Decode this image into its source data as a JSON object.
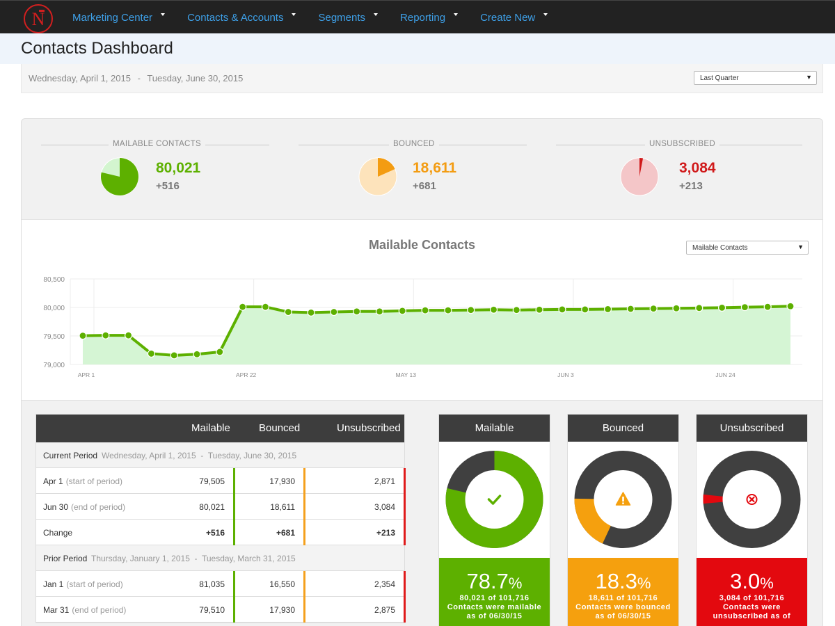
{
  "nav": {
    "logo_letter": "N",
    "menu": [
      "Marketing Center",
      "Contacts & Accounts",
      "Segments",
      "Reporting",
      "Create New"
    ]
  },
  "page": {
    "title": "Contacts Dashboard",
    "date_start": "Wednesday, April 1, 2015",
    "date_separator": "-",
    "date_end": "Tuesday, June 30, 2015",
    "period_select": "Last Quarter"
  },
  "summary": [
    {
      "label": "MAILABLE CONTACTS",
      "value": "80,021",
      "delta": "+516",
      "color": "#5db000",
      "light": "#d3f5cf",
      "fraction": 0.787
    },
    {
      "label": "BOUNCED",
      "value": "18,611",
      "delta": "+681",
      "color": "#f39c12",
      "light": "#fde3bb",
      "fraction": 0.183
    },
    {
      "label": "UNSUBSCRIBED",
      "value": "3,084",
      "delta": "+213",
      "color": "#d0191a",
      "light": "#f4c6c8",
      "fraction": 0.03
    }
  ],
  "chart_data": {
    "type": "area",
    "title": "Mailable Contacts",
    "metric_select": "Mailable Contacts",
    "xlabel": "",
    "ylabel": "",
    "ylim": [
      79000,
      80500
    ],
    "yticks": [
      "80,500",
      "80,000",
      "79,500",
      "79,000"
    ],
    "xticks": [
      "APR 1",
      "APR 22",
      "MAY 13",
      "JUN 3",
      "JUN 24"
    ],
    "values": [
      79505,
      79510,
      79510,
      79190,
      79160,
      79180,
      79220,
      80010,
      80010,
      79920,
      79910,
      79920,
      79930,
      79930,
      79940,
      79950,
      79950,
      79955,
      79960,
      79955,
      79960,
      79965,
      79965,
      79970,
      79975,
      79980,
      79985,
      79990,
      79995,
      80005,
      80010,
      80021
    ]
  },
  "table": {
    "headers": [
      "Mailable",
      "Bounced",
      "Unsubscribed"
    ],
    "current": {
      "label": "Current Period",
      "range": "Wednesday, April 1, 2015  -  Tuesday, June 30, 2015",
      "rows": [
        {
          "label": "Apr 1",
          "sub": "(start of period)",
          "mailable": "79,505",
          "bounced": "17,930",
          "unsub": "2,871"
        },
        {
          "label": "Jun 30",
          "sub": "(end of period)",
          "mailable": "80,021",
          "bounced": "18,611",
          "unsub": "3,084"
        },
        {
          "label": "Change",
          "sub": "",
          "mailable": "+516",
          "bounced": "+681",
          "unsub": "+213"
        }
      ]
    },
    "prior": {
      "label": "Prior Period",
      "range": "Thursday, January 1, 2015  -  Tuesday, March 31, 2015",
      "rows": [
        {
          "label": "Jan 1",
          "sub": "(start of period)",
          "mailable": "81,035",
          "bounced": "16,550",
          "unsub": "2,354"
        },
        {
          "label": "Mar 31",
          "sub": "(end of period)",
          "mailable": "79,510",
          "bounced": "17,930",
          "unsub": "2,875"
        }
      ]
    }
  },
  "cards": [
    {
      "title": "Mailable",
      "pct": "78.7",
      "pct_sign": "%",
      "fraction": 0.787,
      "start_deg": 0,
      "color": "#5db000",
      "icon": "check-icon",
      "line1": "80,021 of 101,716",
      "line2": "Contacts were mailable",
      "line3": "as of 06/30/15"
    },
    {
      "title": "Bounced",
      "pct": "18.3",
      "pct_sign": "%",
      "fraction": 0.183,
      "start_deg": 205,
      "color": "#f5a00e",
      "icon": "warning-icon",
      "line1": "18,611 of 101,716",
      "line2": "Contacts were bounced",
      "line3": "as of 06/30/15"
    },
    {
      "title": "Unsubscribed",
      "pct": "3.0",
      "pct_sign": "%",
      "fraction": 0.03,
      "start_deg": 265,
      "color": "#e3090f",
      "icon": "unsubscribe-x-icon",
      "line1": "3,084 of 101,716",
      "line2": "Contacts were",
      "line3": "unsubscribed as of"
    }
  ]
}
